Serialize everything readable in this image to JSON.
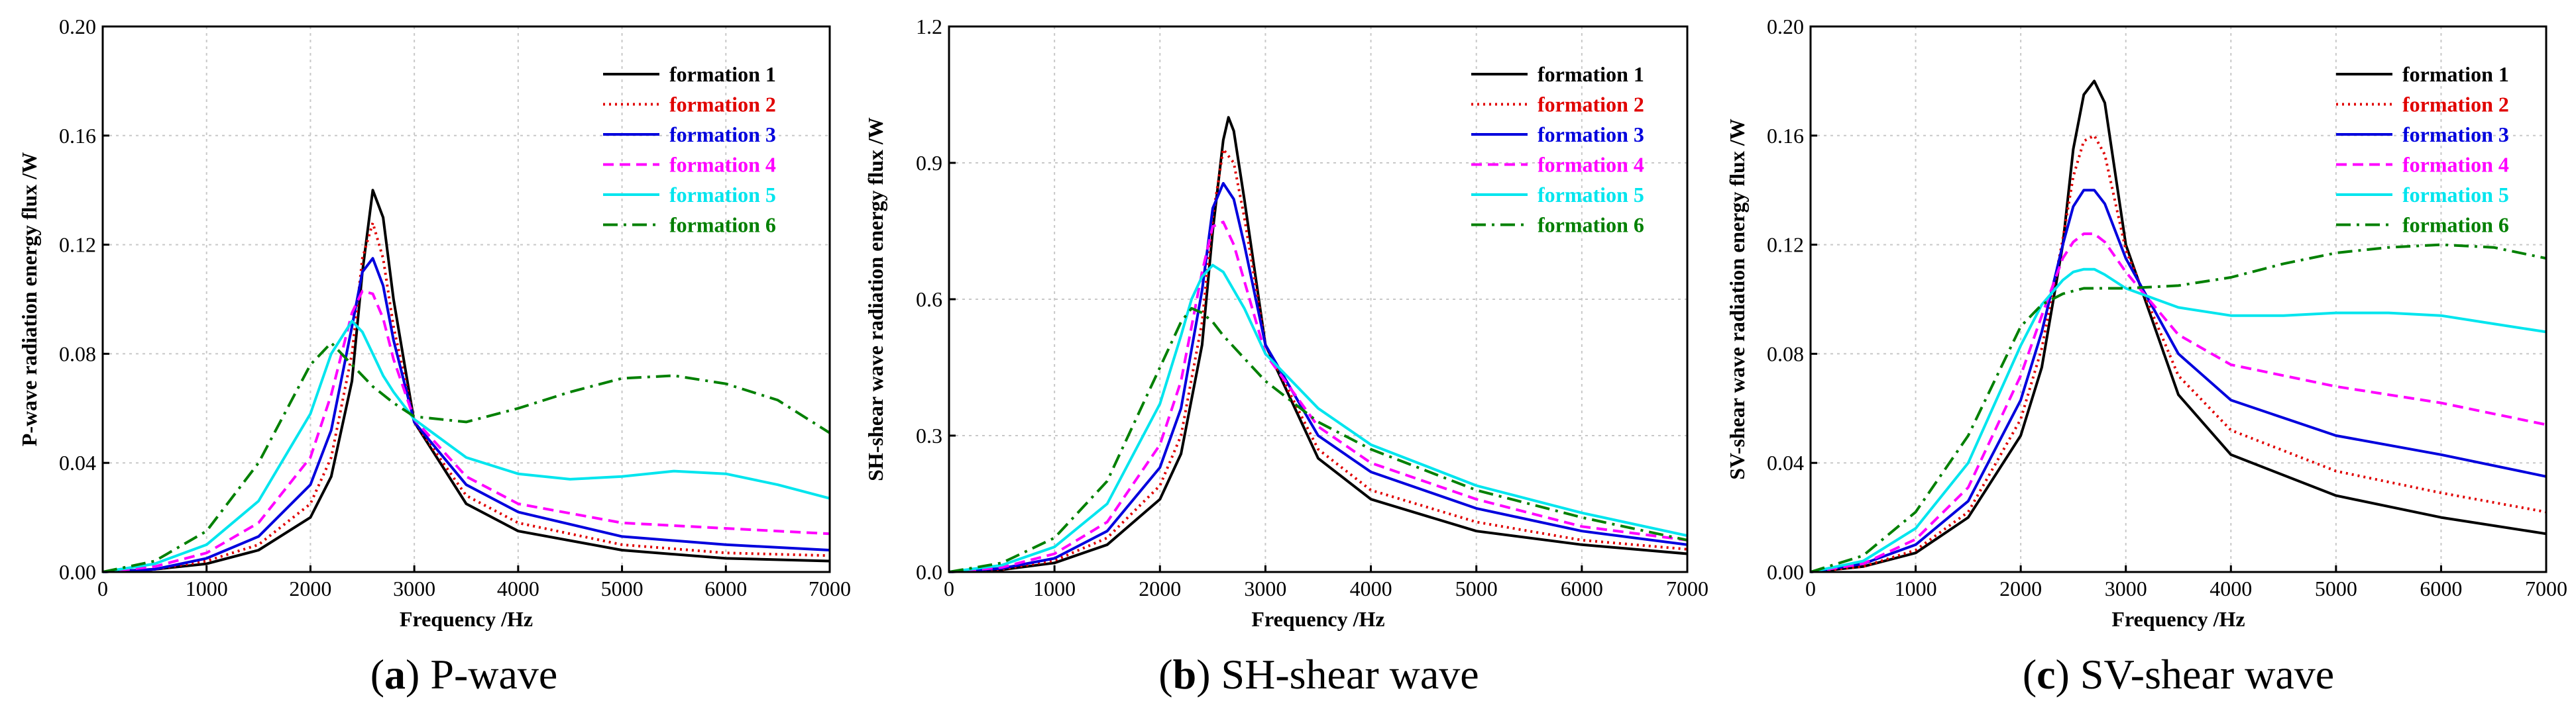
{
  "chart_data": [
    {
      "type": "line",
      "caption_letter": "a",
      "caption_text": " P-wave",
      "xlabel": "Frequency /Hz",
      "ylabel": "P-wave radiation energy flux /W",
      "xlim": [
        0,
        7000
      ],
      "ylim": [
        0,
        0.2
      ],
      "xticks": [
        0,
        1000,
        2000,
        3000,
        4000,
        5000,
        6000,
        7000
      ],
      "yticks": [
        "0.00",
        "0.04",
        "0.08",
        "0.12",
        "0.16",
        "0.20"
      ],
      "grid": true,
      "legend": "top-right",
      "series": [
        {
          "name": "formation 1",
          "color": "#000000",
          "dash": "solid",
          "x": [
            0,
            500,
            1000,
            1500,
            2000,
            2200,
            2400,
            2500,
            2600,
            2700,
            2800,
            3000,
            3500,
            4000,
            5000,
            6000,
            7000
          ],
          "y": [
            0,
            0.001,
            0.003,
            0.008,
            0.02,
            0.035,
            0.07,
            0.11,
            0.14,
            0.13,
            0.1,
            0.055,
            0.025,
            0.015,
            0.008,
            0.005,
            0.004
          ]
        },
        {
          "name": "formation 2",
          "color": "#e00000",
          "dash": "dot",
          "x": [
            0,
            500,
            1000,
            1500,
            2000,
            2200,
            2400,
            2500,
            2600,
            2700,
            2800,
            3000,
            3500,
            4000,
            5000,
            6000,
            7000
          ],
          "y": [
            0,
            0.001,
            0.004,
            0.01,
            0.025,
            0.042,
            0.08,
            0.115,
            0.128,
            0.115,
            0.09,
            0.055,
            0.028,
            0.018,
            0.01,
            0.007,
            0.006
          ]
        },
        {
          "name": "formation 3",
          "color": "#0000dd",
          "dash": "solid",
          "x": [
            0,
            500,
            1000,
            1500,
            2000,
            2200,
            2400,
            2500,
            2600,
            2700,
            2800,
            3000,
            3500,
            4000,
            5000,
            6000,
            7000
          ],
          "y": [
            0,
            0.001,
            0.005,
            0.013,
            0.032,
            0.052,
            0.09,
            0.11,
            0.115,
            0.105,
            0.085,
            0.055,
            0.032,
            0.022,
            0.013,
            0.01,
            0.008
          ]
        },
        {
          "name": "formation 4",
          "color": "#ff00ff",
          "dash": "dash",
          "x": [
            0,
            500,
            1000,
            1500,
            2000,
            2200,
            2400,
            2500,
            2600,
            2700,
            2800,
            3000,
            3500,
            4000,
            5000,
            6000,
            7000
          ],
          "y": [
            0,
            0.002,
            0.007,
            0.018,
            0.042,
            0.065,
            0.095,
            0.103,
            0.102,
            0.093,
            0.078,
            0.056,
            0.035,
            0.025,
            0.018,
            0.016,
            0.014
          ]
        },
        {
          "name": "formation 5",
          "color": "#00e5ee",
          "dash": "solid",
          "x": [
            0,
            500,
            1000,
            1500,
            2000,
            2200,
            2400,
            2500,
            2600,
            2700,
            2800,
            3000,
            3500,
            4000,
            4500,
            5000,
            5500,
            6000,
            6500,
            7000
          ],
          "y": [
            0,
            0.003,
            0.01,
            0.026,
            0.058,
            0.08,
            0.092,
            0.088,
            0.08,
            0.072,
            0.066,
            0.056,
            0.042,
            0.036,
            0.034,
            0.035,
            0.037,
            0.036,
            0.032,
            0.027
          ]
        },
        {
          "name": "formation 6",
          "color": "#008000",
          "dash": "dashdot",
          "x": [
            0,
            500,
            1000,
            1500,
            2000,
            2200,
            2400,
            2600,
            2800,
            3000,
            3500,
            4000,
            4500,
            5000,
            5500,
            6000,
            6500,
            7000
          ],
          "y": [
            0,
            0.004,
            0.015,
            0.04,
            0.076,
            0.084,
            0.076,
            0.068,
            0.062,
            0.057,
            0.055,
            0.06,
            0.066,
            0.071,
            0.072,
            0.069,
            0.063,
            0.051
          ]
        }
      ]
    },
    {
      "type": "line",
      "caption_letter": "b",
      "caption_text": " SH-shear wave",
      "xlabel": "Frequency /Hz",
      "ylabel": "SH-shear wave radiation energy flux /W",
      "xlim": [
        0,
        7000
      ],
      "ylim": [
        0,
        1.2
      ],
      "xticks": [
        0,
        1000,
        2000,
        3000,
        4000,
        5000,
        6000,
        7000
      ],
      "yticks": [
        "0.0",
        "0.3",
        "0.6",
        "0.9",
        "1.2"
      ],
      "grid": true,
      "legend": "top-right",
      "series": [
        {
          "name": "formation 1",
          "color": "#000000",
          "dash": "solid",
          "x": [
            0,
            500,
            1000,
            1500,
            2000,
            2200,
            2400,
            2500,
            2600,
            2650,
            2700,
            2800,
            3000,
            3500,
            4000,
            5000,
            6000,
            7000
          ],
          "y": [
            0,
            0.005,
            0.02,
            0.06,
            0.16,
            0.26,
            0.5,
            0.75,
            0.95,
            1.0,
            0.97,
            0.82,
            0.5,
            0.25,
            0.16,
            0.09,
            0.06,
            0.04
          ]
        },
        {
          "name": "formation 2",
          "color": "#e00000",
          "dash": "dot",
          "x": [
            0,
            500,
            1000,
            1500,
            2000,
            2200,
            2400,
            2500,
            2600,
            2700,
            2800,
            3000,
            3500,
            4000,
            5000,
            6000,
            7000
          ],
          "y": [
            0,
            0.006,
            0.025,
            0.075,
            0.19,
            0.3,
            0.55,
            0.78,
            0.93,
            0.9,
            0.78,
            0.5,
            0.27,
            0.18,
            0.11,
            0.07,
            0.05
          ]
        },
        {
          "name": "formation 3",
          "color": "#0000dd",
          "dash": "solid",
          "x": [
            0,
            500,
            1000,
            1500,
            2000,
            2200,
            2400,
            2500,
            2600,
            2700,
            2800,
            3000,
            3500,
            4000,
            5000,
            6000,
            7000
          ],
          "y": [
            0,
            0.008,
            0.03,
            0.09,
            0.23,
            0.36,
            0.62,
            0.8,
            0.855,
            0.82,
            0.72,
            0.5,
            0.3,
            0.22,
            0.14,
            0.09,
            0.06
          ]
        },
        {
          "name": "formation 4",
          "color": "#ff00ff",
          "dash": "dash",
          "x": [
            0,
            500,
            1000,
            1500,
            2000,
            2200,
            2400,
            2500,
            2600,
            2700,
            2800,
            3000,
            3500,
            4000,
            5000,
            6000,
            7000
          ],
          "y": [
            0,
            0.01,
            0.04,
            0.11,
            0.28,
            0.42,
            0.66,
            0.76,
            0.77,
            0.72,
            0.64,
            0.48,
            0.32,
            0.24,
            0.16,
            0.1,
            0.07
          ]
        },
        {
          "name": "formation 5",
          "color": "#00e5ee",
          "dash": "solid",
          "x": [
            0,
            500,
            1000,
            1500,
            2000,
            2200,
            2300,
            2400,
            2500,
            2600,
            2700,
            2800,
            3000,
            3500,
            4000,
            5000,
            6000,
            7000
          ],
          "y": [
            0,
            0.015,
            0.055,
            0.15,
            0.37,
            0.52,
            0.6,
            0.65,
            0.675,
            0.66,
            0.62,
            0.58,
            0.48,
            0.36,
            0.28,
            0.19,
            0.13,
            0.08
          ]
        },
        {
          "name": "formation 6",
          "color": "#008000",
          "dash": "dashdot",
          "x": [
            0,
            500,
            1000,
            1500,
            2000,
            2200,
            2300,
            2400,
            2500,
            2600,
            2800,
            3000,
            3500,
            4000,
            5000,
            6000,
            7000
          ],
          "y": [
            0,
            0.02,
            0.075,
            0.2,
            0.45,
            0.55,
            0.58,
            0.57,
            0.55,
            0.52,
            0.47,
            0.42,
            0.33,
            0.27,
            0.18,
            0.12,
            0.07
          ]
        }
      ]
    },
    {
      "type": "line",
      "caption_letter": "c",
      "caption_text": " SV-shear wave",
      "xlabel": "Frequency /Hz",
      "ylabel": "SV-shear wave radiation energy flux /W",
      "xlim": [
        0,
        7000
      ],
      "ylim": [
        0,
        0.2
      ],
      "xticks": [
        0,
        1000,
        2000,
        3000,
        4000,
        5000,
        6000,
        7000
      ],
      "yticks": [
        "0.00",
        "0.04",
        "0.08",
        "0.12",
        "0.16",
        "0.20"
      ],
      "grid": true,
      "legend": "top-right",
      "series": [
        {
          "name": "formation 1",
          "color": "#000000",
          "dash": "solid",
          "x": [
            0,
            500,
            1000,
            1500,
            2000,
            2200,
            2400,
            2500,
            2600,
            2700,
            2800,
            3000,
            3500,
            4000,
            5000,
            6000,
            7000
          ],
          "y": [
            0,
            0.002,
            0.007,
            0.02,
            0.05,
            0.075,
            0.12,
            0.155,
            0.175,
            0.18,
            0.172,
            0.12,
            0.065,
            0.043,
            0.028,
            0.02,
            0.014
          ]
        },
        {
          "name": "formation 2",
          "color": "#e00000",
          "dash": "dot",
          "x": [
            0,
            500,
            1000,
            1500,
            2000,
            2200,
            2400,
            2500,
            2600,
            2700,
            2800,
            3000,
            3500,
            4000,
            5000,
            6000,
            7000
          ],
          "y": [
            0,
            0.002,
            0.008,
            0.022,
            0.056,
            0.082,
            0.122,
            0.145,
            0.158,
            0.16,
            0.153,
            0.118,
            0.072,
            0.052,
            0.037,
            0.029,
            0.022
          ]
        },
        {
          "name": "formation 3",
          "color": "#0000dd",
          "dash": "solid",
          "x": [
            0,
            500,
            1000,
            1500,
            2000,
            2200,
            2400,
            2500,
            2600,
            2700,
            2800,
            3000,
            3500,
            4000,
            5000,
            6000,
            7000
          ],
          "y": [
            0,
            0.003,
            0.01,
            0.026,
            0.063,
            0.088,
            0.12,
            0.134,
            0.14,
            0.14,
            0.135,
            0.115,
            0.08,
            0.063,
            0.05,
            0.043,
            0.035
          ]
        },
        {
          "name": "formation 4",
          "color": "#ff00ff",
          "dash": "dash",
          "x": [
            0,
            500,
            1000,
            1500,
            2000,
            2200,
            2400,
            2500,
            2600,
            2700,
            2800,
            3000,
            3500,
            4000,
            5000,
            6000,
            7000
          ],
          "y": [
            0,
            0.003,
            0.012,
            0.031,
            0.072,
            0.094,
            0.115,
            0.121,
            0.124,
            0.124,
            0.121,
            0.11,
            0.087,
            0.076,
            0.068,
            0.062,
            0.054
          ]
        },
        {
          "name": "formation 5",
          "color": "#00e5ee",
          "dash": "solid",
          "x": [
            0,
            500,
            1000,
            1500,
            2000,
            2200,
            2400,
            2500,
            2600,
            2700,
            2800,
            3000,
            3500,
            4000,
            4500,
            5000,
            5500,
            6000,
            6500,
            7000
          ],
          "y": [
            0,
            0.004,
            0.016,
            0.04,
            0.083,
            0.098,
            0.107,
            0.11,
            0.111,
            0.111,
            0.109,
            0.104,
            0.097,
            0.094,
            0.094,
            0.095,
            0.095,
            0.094,
            0.091,
            0.088
          ]
        },
        {
          "name": "formation 6",
          "color": "#008000",
          "dash": "dashdot",
          "x": [
            0,
            500,
            1000,
            1500,
            2000,
            2200,
            2400,
            2500,
            2600,
            2800,
            3000,
            3500,
            4000,
            4500,
            5000,
            5500,
            6000,
            6500,
            7000
          ],
          "y": [
            0,
            0.006,
            0.022,
            0.05,
            0.09,
            0.098,
            0.102,
            0.103,
            0.104,
            0.104,
            0.104,
            0.105,
            0.108,
            0.113,
            0.117,
            0.119,
            0.12,
            0.119,
            0.115
          ]
        }
      ]
    }
  ]
}
